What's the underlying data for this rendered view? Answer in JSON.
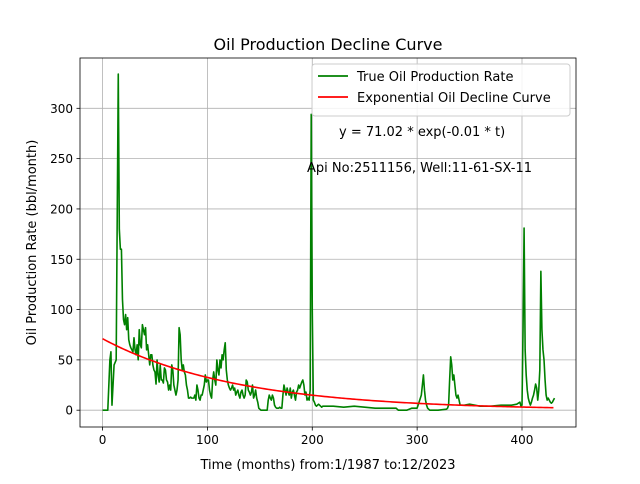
{
  "chart_data": {
    "type": "line",
    "title": "Oil Production Decline Curve",
    "xlabel": "Time (months) from:1/1987 to:12/2023",
    "ylabel": "Oil Production Rate (bbl/month)",
    "xlim": [
      -21.5,
      451.5
    ],
    "ylim": [
      -16.7,
      350.0
    ],
    "xticks": [
      0,
      100,
      200,
      300,
      400
    ],
    "yticks": [
      0,
      50,
      100,
      150,
      200,
      250,
      300
    ],
    "grid": true,
    "legend_position": "top-right",
    "annotations": [
      "y = 71.02 * exp(-0.01 * t)",
      "Api No:2511156, Well:11-61-SX-11"
    ],
    "series": [
      {
        "name": "True Oil Production Rate",
        "color": "#008000",
        "points": [
          [
            0,
            0
          ],
          [
            5,
            0
          ],
          [
            7,
            50
          ],
          [
            8,
            58
          ],
          [
            9,
            5
          ],
          [
            11,
            45
          ],
          [
            13,
            50
          ],
          [
            15,
            334
          ],
          [
            16,
            180
          ],
          [
            17,
            160
          ],
          [
            18,
            160
          ],
          [
            19,
            110
          ],
          [
            20,
            90
          ],
          [
            21,
            85
          ],
          [
            22,
            95
          ],
          [
            23,
            80
          ],
          [
            24,
            92
          ],
          [
            25,
            70
          ],
          [
            26,
            65
          ],
          [
            27,
            62
          ],
          [
            28,
            60
          ],
          [
            29,
            58
          ],
          [
            30,
            72
          ],
          [
            31,
            60
          ],
          [
            32,
            55
          ],
          [
            33,
            65
          ],
          [
            34,
            50
          ],
          [
            35,
            80
          ],
          [
            36,
            65
          ],
          [
            37,
            62
          ],
          [
            38,
            85
          ],
          [
            39,
            80
          ],
          [
            40,
            75
          ],
          [
            41,
            82
          ],
          [
            42,
            60
          ],
          [
            43,
            65
          ],
          [
            44,
            55
          ],
          [
            45,
            45
          ],
          [
            46,
            55
          ],
          [
            47,
            55
          ],
          [
            48,
            45
          ],
          [
            49,
            40
          ],
          [
            50,
            38
          ],
          [
            51,
            26
          ],
          [
            52,
            50
          ],
          [
            53,
            35
          ],
          [
            54,
            28
          ],
          [
            55,
            45
          ],
          [
            56,
            30
          ],
          [
            57,
            30
          ],
          [
            58,
            27
          ],
          [
            59,
            42
          ],
          [
            60,
            40
          ],
          [
            61,
            30
          ],
          [
            62,
            28
          ],
          [
            63,
            20
          ],
          [
            64,
            25
          ],
          [
            65,
            20
          ],
          [
            66,
            45
          ],
          [
            67,
            40
          ],
          [
            68,
            25
          ],
          [
            69,
            20
          ],
          [
            70,
            15
          ],
          [
            71,
            20
          ],
          [
            72,
            30
          ],
          [
            73,
            82
          ],
          [
            74,
            75
          ],
          [
            75,
            50
          ],
          [
            76,
            40
          ],
          [
            77,
            45
          ],
          [
            78,
            38
          ],
          [
            79,
            35
          ],
          [
            80,
            25
          ],
          [
            81,
            20
          ],
          [
            82,
            12
          ],
          [
            83,
            12
          ],
          [
            84,
            13
          ],
          [
            85,
            12
          ],
          [
            86,
            12
          ],
          [
            87,
            12
          ],
          [
            88,
            15
          ],
          [
            89,
            10
          ],
          [
            90,
            25
          ],
          [
            91,
            20
          ],
          [
            92,
            12
          ],
          [
            93,
            10
          ],
          [
            94,
            15
          ],
          [
            95,
            15
          ],
          [
            96,
            20
          ],
          [
            97,
            25
          ],
          [
            98,
            35
          ],
          [
            99,
            28
          ],
          [
            100,
            30
          ],
          [
            101,
            30
          ],
          [
            102,
            20
          ],
          [
            103,
            15
          ],
          [
            104,
            12
          ],
          [
            105,
            30
          ],
          [
            106,
            38
          ],
          [
            107,
            30
          ],
          [
            108,
            25
          ],
          [
            109,
            50
          ],
          [
            110,
            40
          ],
          [
            111,
            35
          ],
          [
            112,
            50
          ],
          [
            113,
            42
          ],
          [
            114,
            55
          ],
          [
            115,
            50
          ],
          [
            116,
            60
          ],
          [
            117,
            67
          ],
          [
            118,
            40
          ],
          [
            119,
            30
          ],
          [
            120,
            25
          ],
          [
            121,
            22
          ],
          [
            122,
            20
          ],
          [
            123,
            22
          ],
          [
            124,
            25
          ],
          [
            125,
            20
          ],
          [
            126,
            22
          ],
          [
            127,
            15
          ],
          [
            128,
            18
          ],
          [
            129,
            20
          ],
          [
            130,
            15
          ],
          [
            131,
            12
          ],
          [
            132,
            18
          ],
          [
            133,
            20
          ],
          [
            134,
            15
          ],
          [
            135,
            12
          ],
          [
            136,
            15
          ],
          [
            137,
            30
          ],
          [
            138,
            28
          ],
          [
            139,
            20
          ],
          [
            140,
            18
          ],
          [
            141,
            15
          ],
          [
            142,
            18
          ],
          [
            143,
            25
          ],
          [
            144,
            12
          ],
          [
            145,
            15
          ],
          [
            146,
            20
          ],
          [
            147,
            12
          ],
          [
            148,
            8
          ],
          [
            149,
            2
          ],
          [
            150,
            1
          ],
          [
            151,
            0
          ],
          [
            152,
            0
          ],
          [
            153,
            0
          ],
          [
            154,
            0
          ],
          [
            155,
            0
          ],
          [
            156,
            0
          ],
          [
            157,
            0
          ],
          [
            158,
            10
          ],
          [
            159,
            15
          ],
          [
            160,
            12
          ],
          [
            161,
            10
          ],
          [
            162,
            15
          ],
          [
            163,
            12
          ],
          [
            164,
            5
          ],
          [
            165,
            3
          ],
          [
            166,
            2
          ],
          [
            167,
            2
          ],
          [
            168,
            2
          ],
          [
            169,
            3
          ],
          [
            170,
            2
          ],
          [
            171,
            2
          ],
          [
            172,
            15
          ],
          [
            173,
            25
          ],
          [
            174,
            20
          ],
          [
            175,
            15
          ],
          [
            176,
            22
          ],
          [
            177,
            18
          ],
          [
            178,
            15
          ],
          [
            179,
            22
          ],
          [
            180,
            12
          ],
          [
            181,
            18
          ],
          [
            182,
            20
          ],
          [
            183,
            15
          ],
          [
            184,
            10
          ],
          [
            185,
            18
          ],
          [
            186,
            20
          ],
          [
            187,
            25
          ],
          [
            188,
            22
          ],
          [
            189,
            25
          ],
          [
            190,
            28
          ],
          [
            191,
            30
          ],
          [
            192,
            25
          ],
          [
            193,
            15
          ],
          [
            194,
            18
          ],
          [
            195,
            10
          ],
          [
            196,
            12
          ],
          [
            197,
            10
          ],
          [
            198,
            20
          ],
          [
            199,
            294
          ],
          [
            200,
            100
          ],
          [
            201,
            10
          ],
          [
            202,
            8
          ],
          [
            203,
            5
          ],
          [
            204,
            4
          ],
          [
            205,
            5
          ],
          [
            206,
            6
          ],
          [
            207,
            5
          ],
          [
            208,
            4
          ],
          [
            209,
            3
          ],
          [
            210,
            4
          ],
          [
            220,
            4
          ],
          [
            230,
            3
          ],
          [
            240,
            4
          ],
          [
            250,
            3
          ],
          [
            260,
            2
          ],
          [
            270,
            2
          ],
          [
            280,
            2
          ],
          [
            282,
            0
          ],
          [
            290,
            0
          ],
          [
            295,
            2
          ],
          [
            300,
            2
          ],
          [
            304,
            15
          ],
          [
            305,
            25
          ],
          [
            306,
            35
          ],
          [
            307,
            20
          ],
          [
            308,
            10
          ],
          [
            309,
            5
          ],
          [
            310,
            2
          ],
          [
            311,
            1
          ],
          [
            312,
            0
          ],
          [
            320,
            0
          ],
          [
            328,
            1
          ],
          [
            329,
            2
          ],
          [
            330,
            5
          ],
          [
            331,
            30
          ],
          [
            332,
            53
          ],
          [
            333,
            45
          ],
          [
            334,
            30
          ],
          [
            335,
            35
          ],
          [
            336,
            25
          ],
          [
            337,
            15
          ],
          [
            338,
            12
          ],
          [
            339,
            15
          ],
          [
            340,
            10
          ],
          [
            341,
            5
          ],
          [
            345,
            5
          ],
          [
            350,
            6
          ],
          [
            360,
            4
          ],
          [
            370,
            4
          ],
          [
            380,
            5
          ],
          [
            390,
            5
          ],
          [
            395,
            6
          ],
          [
            398,
            8
          ],
          [
            399,
            4
          ],
          [
            400,
            5
          ],
          [
            401,
            80
          ],
          [
            402,
            181
          ],
          [
            403,
            60
          ],
          [
            404,
            35
          ],
          [
            405,
            20
          ],
          [
            406,
            12
          ],
          [
            407,
            8
          ],
          [
            408,
            5
          ],
          [
            409,
            8
          ],
          [
            410,
            12
          ],
          [
            411,
            15
          ],
          [
            412,
            20
          ],
          [
            413,
            26
          ],
          [
            414,
            22
          ],
          [
            415,
            10
          ],
          [
            416,
            20
          ],
          [
            417,
            40
          ],
          [
            418,
            138
          ],
          [
            419,
            80
          ],
          [
            420,
            60
          ],
          [
            421,
            50
          ],
          [
            422,
            30
          ],
          [
            423,
            15
          ],
          [
            424,
            10
          ],
          [
            425,
            12
          ],
          [
            426,
            10
          ],
          [
            427,
            8
          ],
          [
            428,
            7
          ],
          [
            429,
            8
          ],
          [
            430,
            10
          ],
          [
            431,
            12
          ]
        ]
      },
      {
        "name": "Exponential Oil Decline Curve",
        "color": "#ff0000",
        "fit": {
          "a": 71.02,
          "b": 0.0078,
          "x_start": 0,
          "x_end": 430
        }
      }
    ]
  }
}
